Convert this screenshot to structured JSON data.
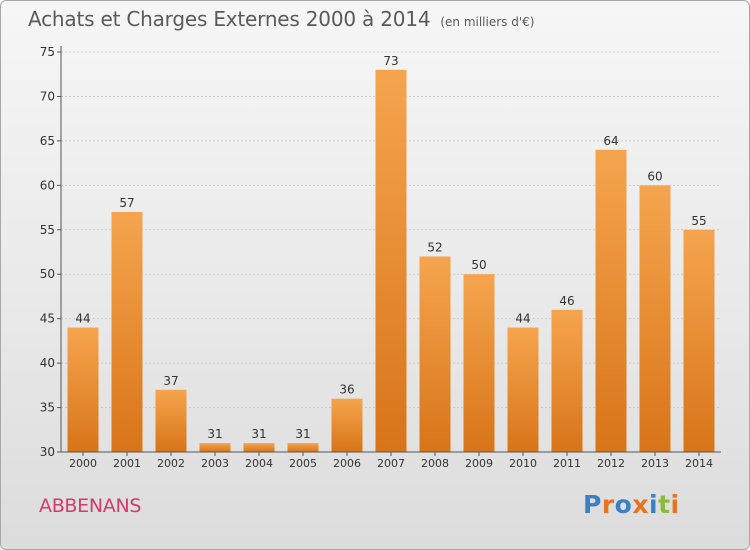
{
  "title": "Achats et Charges Externes 2000 à 2014",
  "unit": "(en milliers d'€)",
  "commune": "ABBENANS",
  "logo": {
    "text": "Proxiti",
    "letters": [
      {
        "ch": "P",
        "color": "#3b7fc4"
      },
      {
        "ch": "r",
        "color": "#e8731f"
      },
      {
        "ch": "o",
        "color": "#3b7fc4"
      },
      {
        "ch": "x",
        "color": "#e8731f"
      },
      {
        "ch": "i",
        "color": "#3b7fc4"
      },
      {
        "ch": "t",
        "color": "#8cbb3f"
      },
      {
        "ch": "i",
        "color": "#e8731f"
      }
    ]
  },
  "colors": {
    "bar_top": "#f5a54e",
    "bar_bottom": "#d87419",
    "axis": "#555555",
    "grid": "#cccccc",
    "text": "#333333"
  },
  "chart_data": {
    "type": "bar",
    "title": "Achats et Charges Externes 2000 à 2014",
    "categories": [
      "2000",
      "2001",
      "2002",
      "2003",
      "2004",
      "2005",
      "2006",
      "2007",
      "2008",
      "2009",
      "2010",
      "2011",
      "2012",
      "2013",
      "2014"
    ],
    "values": [
      44,
      57,
      37,
      31,
      31,
      31,
      36,
      73,
      52,
      50,
      44,
      46,
      64,
      60,
      55
    ],
    "ylim": [
      30,
      75
    ],
    "yticks": [
      30,
      35,
      40,
      45,
      50,
      55,
      60,
      65,
      70,
      75
    ],
    "grid": "horizontal dashed",
    "xlabel": "",
    "ylabel": ""
  }
}
